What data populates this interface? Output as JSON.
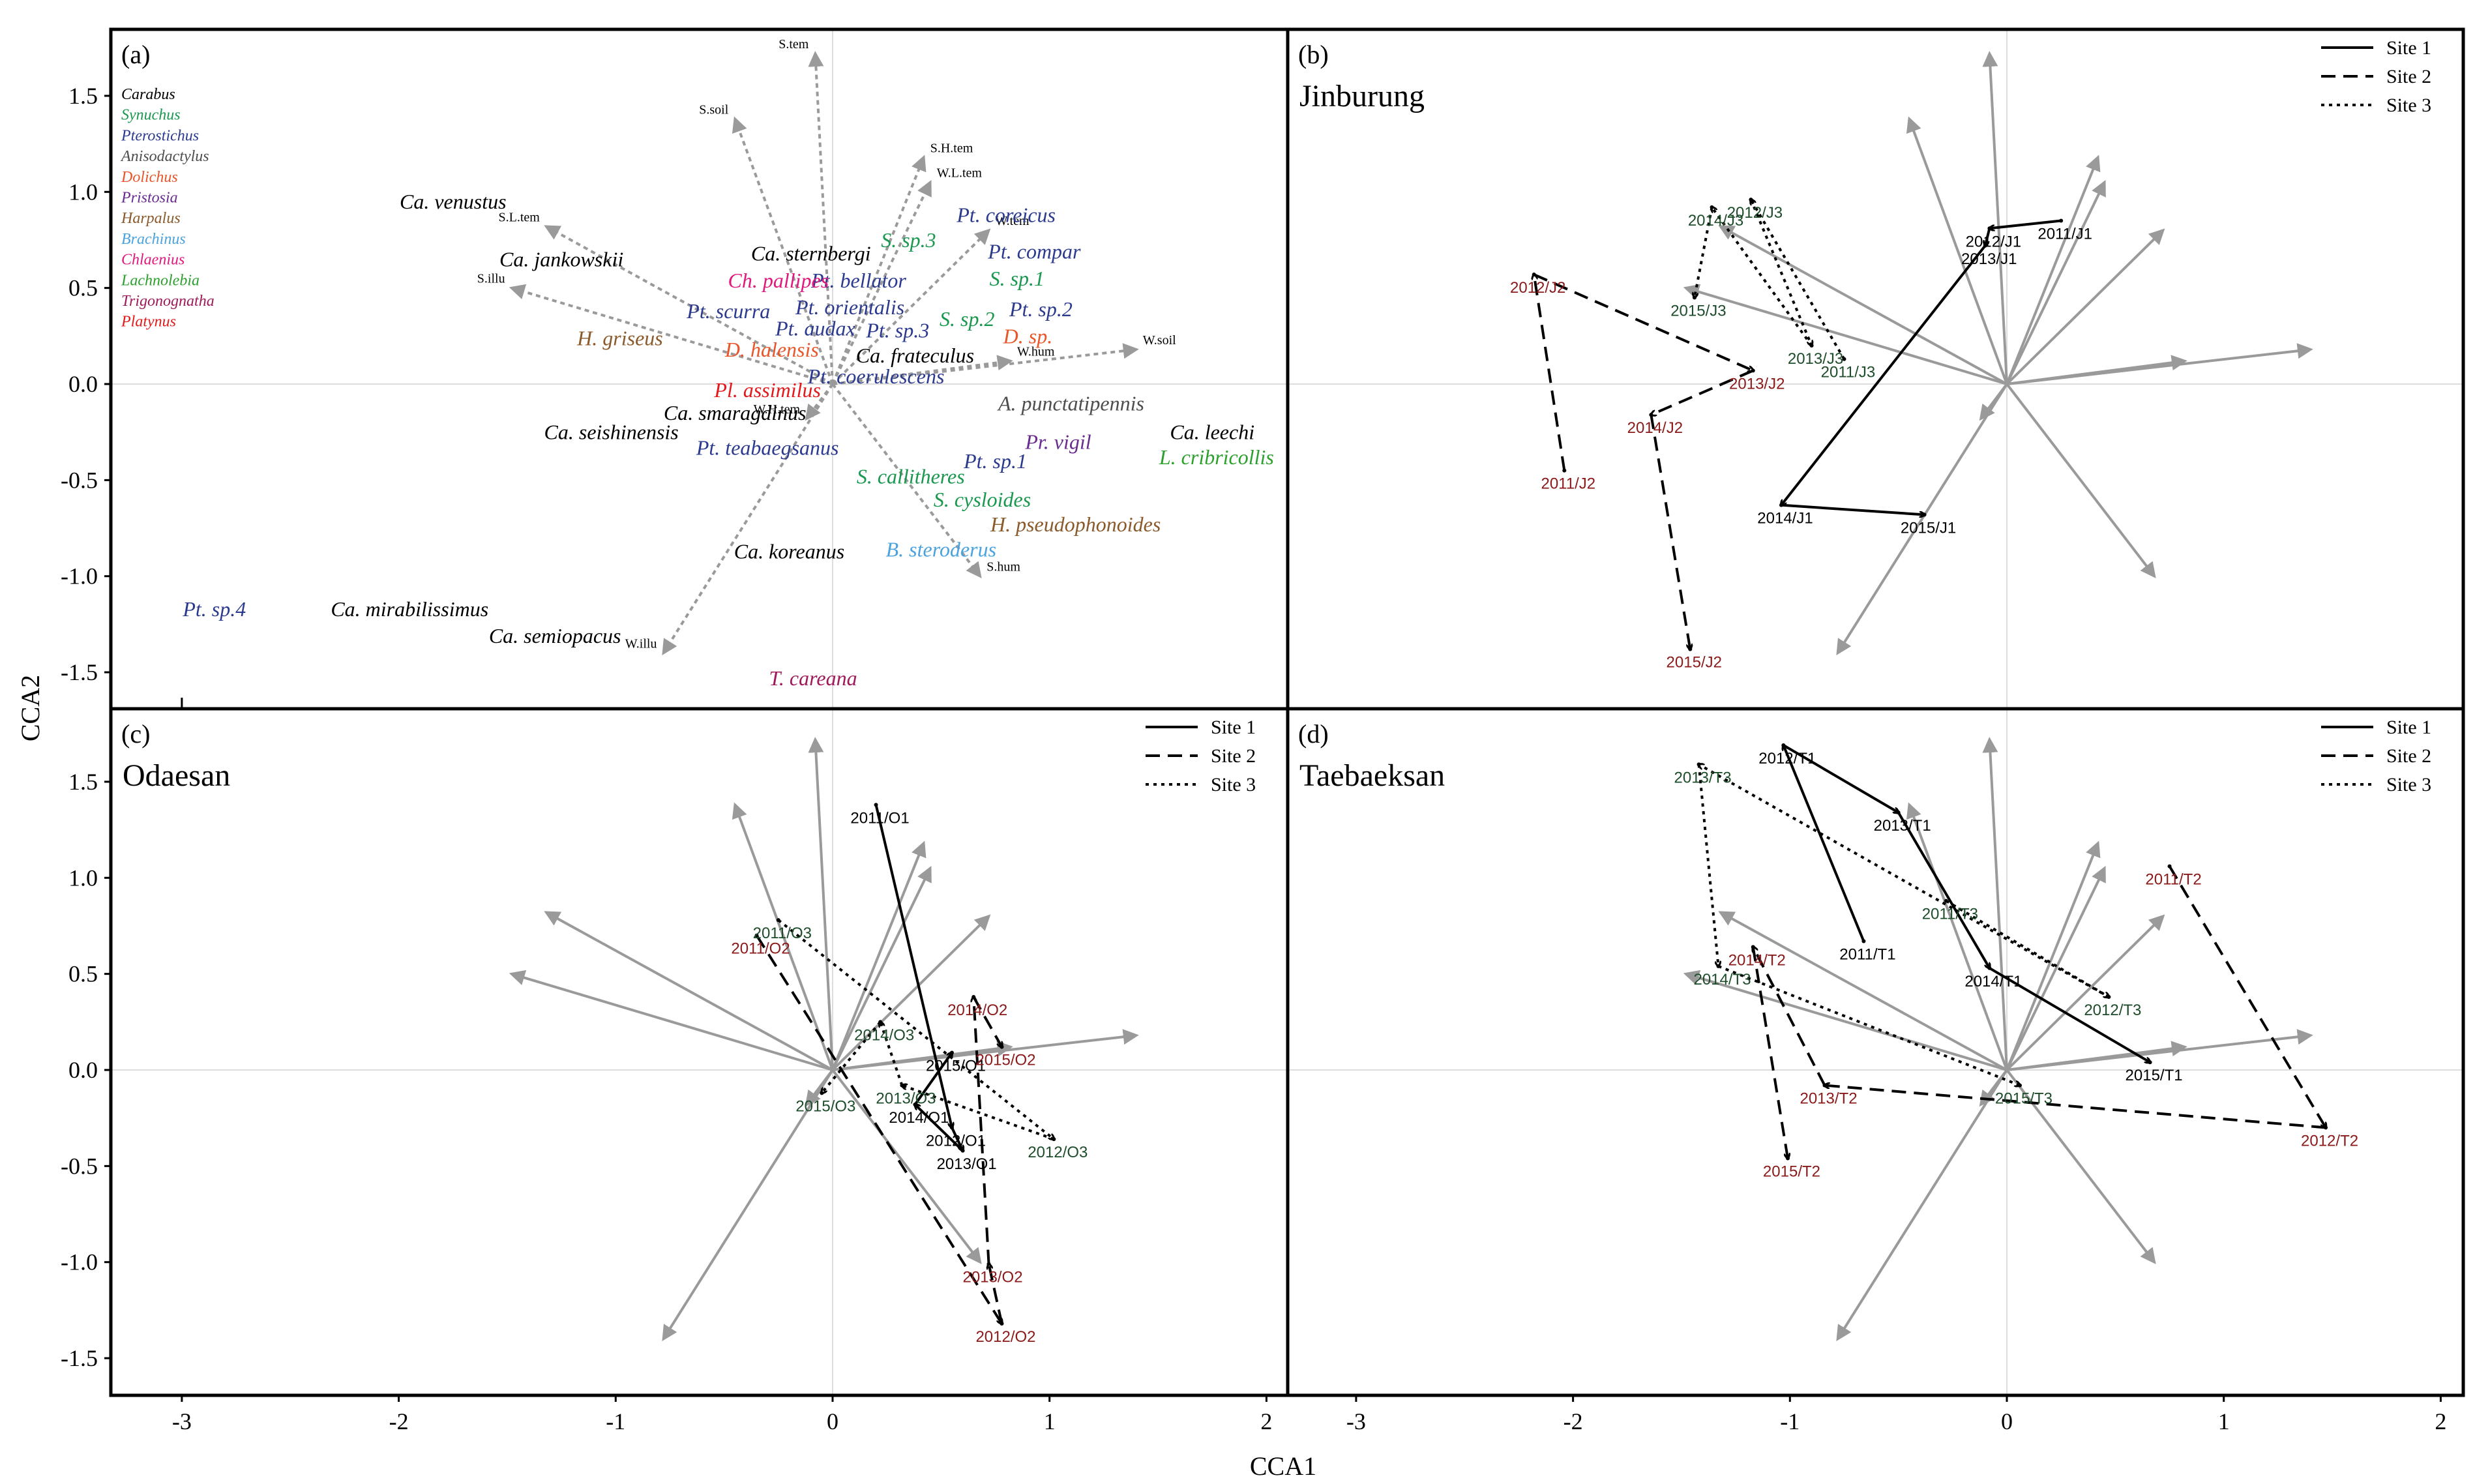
{
  "figure": {
    "xlabel": "CCA1",
    "ylabel": "CCA2",
    "colors": {
      "frame": "#000000",
      "arrow": "#9a9a9a",
      "zero_line": "#dddddd",
      "site1": "#000000",
      "site2": "#8b1a1a",
      "site3": "#1e4d2b"
    }
  },
  "chart_data": [
    {
      "type": "scatter",
      "id": "a",
      "panel_label": "(a)",
      "xlim": [
        -3.3,
        2.1
      ],
      "ylim": [
        -1.65,
        1.82
      ],
      "xticks": [
        -3,
        -2,
        -1,
        0,
        1,
        2
      ],
      "yticks": [
        -1.5,
        -1.0,
        -0.5,
        0.0,
        0.5,
        1.0,
        1.5
      ],
      "tick_labels_x": [
        "-3",
        "-2",
        "-1",
        "0",
        "1",
        "2"
      ],
      "tick_labels_y": [
        "-1.5",
        "-1.0",
        "-0.5",
        "0.0",
        "0.5",
        "1.0",
        "1.5"
      ],
      "genus_legend": [
        {
          "name": "Carabus",
          "color": "#000000"
        },
        {
          "name": "Synuchus",
          "color": "#1a9850"
        },
        {
          "name": "Pterostichus",
          "color": "#2b3a8f"
        },
        {
          "name": "Anisodactylus",
          "color": "#4d4d4d"
        },
        {
          "name": "Dolichus",
          "color": "#e8562a"
        },
        {
          "name": "Pristosia",
          "color": "#6a2c91"
        },
        {
          "name": "Harpalus",
          "color": "#8b5a2b"
        },
        {
          "name": "Brachinus",
          "color": "#4aa3df"
        },
        {
          "name": "Chlaenius",
          "color": "#e0197d"
        },
        {
          "name": "Lachnolebia",
          "color": "#2ca02c"
        },
        {
          "name": "Trigonognatha",
          "color": "#a0195a"
        },
        {
          "name": "Platynus",
          "color": "#e31a1c"
        }
      ],
      "env_arrows": [
        {
          "name": "S.tem",
          "x": -0.08,
          "y": 1.72
        },
        {
          "name": "S.soil",
          "x": -0.45,
          "y": 1.38
        },
        {
          "name": "S.H.tem",
          "x": 0.42,
          "y": 1.18
        },
        {
          "name": "W.L.tem",
          "x": 0.45,
          "y": 1.05
        },
        {
          "name": "W.tem",
          "x": 0.72,
          "y": 0.8
        },
        {
          "name": "S.L.tem",
          "x": -1.32,
          "y": 0.82
        },
        {
          "name": "S.illu",
          "x": -1.48,
          "y": 0.5
        },
        {
          "name": "W.hum",
          "x": 0.82,
          "y": 0.12
        },
        {
          "name": "W.soil",
          "x": 1.4,
          "y": 0.18
        },
        {
          "name": "W.H.tem",
          "x": -0.12,
          "y": -0.18
        },
        {
          "name": "S.hum",
          "x": 0.68,
          "y": -1.0
        },
        {
          "name": "W.illu",
          "x": -0.78,
          "y": -1.4
        }
      ],
      "species": [
        {
          "name": "Ca. venustus",
          "x": -1.75,
          "y": 0.95,
          "genus": "Carabus"
        },
        {
          "name": "Ca. jankowskii",
          "x": -1.25,
          "y": 0.65,
          "genus": "Carabus"
        },
        {
          "name": "Ca. sternbergi",
          "x": -0.1,
          "y": 0.68,
          "genus": "Carabus"
        },
        {
          "name": "Ca. frateculus",
          "x": 0.38,
          "y": 0.15,
          "genus": "Carabus"
        },
        {
          "name": "Ca. smaragdinus",
          "x": -0.45,
          "y": -0.15,
          "genus": "Carabus"
        },
        {
          "name": "Ca. seishinensis",
          "x": -1.02,
          "y": -0.25,
          "genus": "Carabus"
        },
        {
          "name": "Ca. leechi",
          "x": 1.75,
          "y": -0.25,
          "genus": "Carabus"
        },
        {
          "name": "Ca. koreanus",
          "x": -0.2,
          "y": -0.87,
          "genus": "Carabus"
        },
        {
          "name": "Ca. mirabilissimus",
          "x": -1.95,
          "y": -1.17,
          "genus": "Carabus"
        },
        {
          "name": "Ca. semiopacus",
          "x": -1.28,
          "y": -1.31,
          "genus": "Carabus"
        },
        {
          "name": "S. sp.3",
          "x": 0.35,
          "y": 0.75,
          "genus": "Synuchus"
        },
        {
          "name": "S. sp.1",
          "x": 0.85,
          "y": 0.55,
          "genus": "Synuchus"
        },
        {
          "name": "S. sp.2",
          "x": 0.62,
          "y": 0.34,
          "genus": "Synuchus"
        },
        {
          "name": "S. callitheres",
          "x": 0.36,
          "y": -0.48,
          "genus": "Synuchus"
        },
        {
          "name": "S. cysloides",
          "x": 0.69,
          "y": -0.6,
          "genus": "Synuchus"
        },
        {
          "name": "Pt. coreicus",
          "x": 0.8,
          "y": 0.88,
          "genus": "Pterostichus"
        },
        {
          "name": "Pt. compar",
          "x": 0.93,
          "y": 0.69,
          "genus": "Pterostichus"
        },
        {
          "name": "Pt. bellator",
          "x": 0.12,
          "y": 0.54,
          "genus": "Pterostichus"
        },
        {
          "name": "Pt. orientalis",
          "x": 0.08,
          "y": 0.4,
          "genus": "Pterostichus"
        },
        {
          "name": "Pt. scurra",
          "x": -0.48,
          "y": 0.38,
          "genus": "Pterostichus"
        },
        {
          "name": "Pt. audax",
          "x": -0.08,
          "y": 0.29,
          "genus": "Pterostichus"
        },
        {
          "name": "Pt. sp.3",
          "x": 0.3,
          "y": 0.28,
          "genus": "Pterostichus"
        },
        {
          "name": "Pt. sp.2",
          "x": 0.96,
          "y": 0.39,
          "genus": "Pterostichus"
        },
        {
          "name": "Pt. coerulescens",
          "x": 0.2,
          "y": 0.04,
          "genus": "Pterostichus"
        },
        {
          "name": "Pt. teabaegsanus",
          "x": -0.3,
          "y": -0.33,
          "genus": "Pterostichus"
        },
        {
          "name": "Pt. sp.1",
          "x": 0.75,
          "y": -0.4,
          "genus": "Pterostichus"
        },
        {
          "name": "Pt. sp.4",
          "x": -2.85,
          "y": -1.17,
          "genus": "Pterostichus"
        },
        {
          "name": "A. punctatipennis",
          "x": 1.1,
          "y": -0.1,
          "genus": "Anisodactylus"
        },
        {
          "name": "D. halensis",
          "x": -0.28,
          "y": 0.18,
          "genus": "Dolichus"
        },
        {
          "name": "D. sp.",
          "x": 0.9,
          "y": 0.25,
          "genus": "Dolichus"
        },
        {
          "name": "Pr. vigil",
          "x": 1.04,
          "y": -0.3,
          "genus": "Pristosia"
        },
        {
          "name": "H. griseus",
          "x": -0.98,
          "y": 0.24,
          "genus": "Harpalus"
        },
        {
          "name": "H. pseudophonoides",
          "x": 1.12,
          "y": -0.73,
          "genus": "Harpalus"
        },
        {
          "name": "B. steroderus",
          "x": 0.5,
          "y": -0.86,
          "genus": "Brachinus"
        },
        {
          "name": "Ch. pallipes",
          "x": -0.25,
          "y": 0.54,
          "genus": "Chlaenius"
        },
        {
          "name": "L. cribricollis",
          "x": 1.77,
          "y": -0.38,
          "genus": "Lachnolebia"
        },
        {
          "name": "T. careana",
          "x": -0.09,
          "y": -1.53,
          "genus": "Trigonognatha"
        },
        {
          "name": "Pl. assimilus",
          "x": -0.3,
          "y": -0.03,
          "genus": "Platynus"
        }
      ]
    },
    {
      "type": "line",
      "id": "b",
      "panel_label": "(b)",
      "title": "Jinburung",
      "xlim": [
        -3.3,
        2.1
      ],
      "ylim": [
        -1.65,
        1.82
      ],
      "xticks": [
        -3,
        -2,
        -1,
        0,
        1,
        2
      ],
      "tick_labels_x": [
        "-3",
        "-2",
        "-1",
        "0",
        "1",
        "2"
      ],
      "legend": [
        "Site 1",
        "Site 2",
        "Site 3"
      ],
      "series": [
        {
          "name": "Site 1",
          "style": "solid",
          "color": "#000000",
          "points": [
            {
              "label": "2011/J1",
              "x": 0.25,
              "y": 0.85
            },
            {
              "label": "2012/J1",
              "x": -0.08,
              "y": 0.81
            },
            {
              "label": "2013/J1",
              "x": -0.1,
              "y": 0.72
            },
            {
              "label": "2014/J1",
              "x": -1.04,
              "y": -0.63
            },
            {
              "label": "2015/J1",
              "x": -0.38,
              "y": -0.68
            }
          ]
        },
        {
          "name": "Site 2",
          "style": "dashed",
          "color": "#8b1a1a",
          "points": [
            {
              "label": "2011/J2",
              "x": -2.04,
              "y": -0.45
            },
            {
              "label": "2012/J2",
              "x": -2.18,
              "y": 0.57
            },
            {
              "label": "2013/J2",
              "x": -1.17,
              "y": 0.07
            },
            {
              "label": "2014/J2",
              "x": -1.64,
              "y": -0.16
            },
            {
              "label": "2015/J2",
              "x": -1.46,
              "y": -1.38
            }
          ]
        },
        {
          "name": "Site 3",
          "style": "dotted",
          "color": "#1e4d2b",
          "points": [
            {
              "label": "2011/J3",
              "x": -0.75,
              "y": 0.13
            },
            {
              "label": "2012/J3",
              "x": -1.18,
              "y": 0.96
            },
            {
              "label": "2013/J3",
              "x": -0.9,
              "y": 0.2
            },
            {
              "label": "2014/J3",
              "x": -1.36,
              "y": 0.92
            },
            {
              "label": "2015/J3",
              "x": -1.44,
              "y": 0.45
            }
          ]
        }
      ]
    },
    {
      "type": "line",
      "id": "c",
      "panel_label": "(c)",
      "title": "Odaesan",
      "xlim": [
        -3.3,
        2.1
      ],
      "ylim": [
        -1.65,
        1.82
      ],
      "xticks": [
        -3,
        -2,
        -1,
        0,
        1,
        2
      ],
      "yticks": [
        -1.5,
        -1.0,
        -0.5,
        0.0,
        0.5,
        1.0,
        1.5
      ],
      "tick_labels_x": [
        "-3",
        "-2",
        "-1",
        "0",
        "1",
        "2"
      ],
      "tick_labels_y": [
        "-1.5",
        "-1.0",
        "-0.5",
        "0.0",
        "0.5",
        "1.0",
        "1.5"
      ],
      "legend": [
        "Site 1",
        "Site 2",
        "Site 3"
      ],
      "series": [
        {
          "name": "Site 1",
          "style": "solid",
          "color": "#000000",
          "points": [
            {
              "label": "2011/O1",
              "x": 0.2,
              "y": 1.38
            },
            {
              "label": "2012/O1",
              "x": 0.55,
              "y": -0.3
            },
            {
              "label": "2013/O1",
              "x": 0.6,
              "y": -0.42
            },
            {
              "label": "2014/O1",
              "x": 0.38,
              "y": -0.18
            },
            {
              "label": "2015/O1",
              "x": 0.55,
              "y": 0.09
            }
          ]
        },
        {
          "name": "Site 2",
          "style": "dashed",
          "color": "#8b1a1a",
          "points": [
            {
              "label": "2011/O2",
              "x": -0.35,
              "y": 0.7
            },
            {
              "label": "2012/O2",
              "x": 0.78,
              "y": -1.32
            },
            {
              "label": "2013/O2",
              "x": 0.72,
              "y": -1.01
            },
            {
              "label": "2014/O2",
              "x": 0.65,
              "y": 0.38
            },
            {
              "label": "2015/O2",
              "x": 0.78,
              "y": 0.12
            }
          ]
        },
        {
          "name": "Site 3",
          "style": "dotted",
          "color": "#1e4d2b",
          "points": [
            {
              "label": "2011/O3",
              "x": -0.25,
              "y": 0.78
            },
            {
              "label": "2012/O3",
              "x": 1.02,
              "y": -0.36
            },
            {
              "label": "2013/O3",
              "x": 0.32,
              "y": -0.08
            },
            {
              "label": "2014/O3",
              "x": 0.22,
              "y": 0.25
            },
            {
              "label": "2015/O3",
              "x": -0.05,
              "y": -0.12
            }
          ]
        }
      ]
    },
    {
      "type": "line",
      "id": "d",
      "panel_label": "(d)",
      "title": "Taebaeksan",
      "xlim": [
        -3.3,
        2.1
      ],
      "ylim": [
        -1.65,
        1.82
      ],
      "xticks": [
        -3,
        -2,
        -1,
        0,
        1,
        2
      ],
      "tick_labels_x": [
        "-3",
        "-2",
        "-1",
        "0",
        "1",
        "2"
      ],
      "legend": [
        "Site 1",
        "Site 2",
        "Site 3"
      ],
      "series": [
        {
          "name": "Site 1",
          "style": "solid",
          "color": "#000000",
          "points": [
            {
              "label": "2011/T1",
              "x": -0.66,
              "y": 0.67
            },
            {
              "label": "2012/T1",
              "x": -1.03,
              "y": 1.69
            },
            {
              "label": "2013/T1",
              "x": -0.5,
              "y": 1.34
            },
            {
              "label": "2014/T1",
              "x": -0.08,
              "y": 0.53
            },
            {
              "label": "2015/T1",
              "x": 0.66,
              "y": 0.04
            }
          ]
        },
        {
          "name": "Site 2",
          "style": "dashed",
          "color": "#8b1a1a",
          "points": [
            {
              "label": "2011/T2",
              "x": 0.75,
              "y": 1.06
            },
            {
              "label": "2012/T2",
              "x": 1.47,
              "y": -0.3
            },
            {
              "label": "2013/T2",
              "x": -0.84,
              "y": -0.08
            },
            {
              "label": "2014/T2",
              "x": -1.17,
              "y": 0.64
            },
            {
              "label": "2015/T2",
              "x": -1.01,
              "y": -0.46
            }
          ]
        },
        {
          "name": "Site 3",
          "style": "dotted",
          "color": "#1e4d2b",
          "points": [
            {
              "label": "2011/T3",
              "x": -0.28,
              "y": 0.88
            },
            {
              "label": "2012/T3",
              "x": 0.47,
              "y": 0.38
            },
            {
              "label": "2013/T3",
              "x": -1.42,
              "y": 1.59
            },
            {
              "label": "2014/T3",
              "x": -1.33,
              "y": 0.54
            },
            {
              "label": "2015/T3",
              "x": 0.06,
              "y": -0.08
            }
          ]
        }
      ]
    }
  ]
}
